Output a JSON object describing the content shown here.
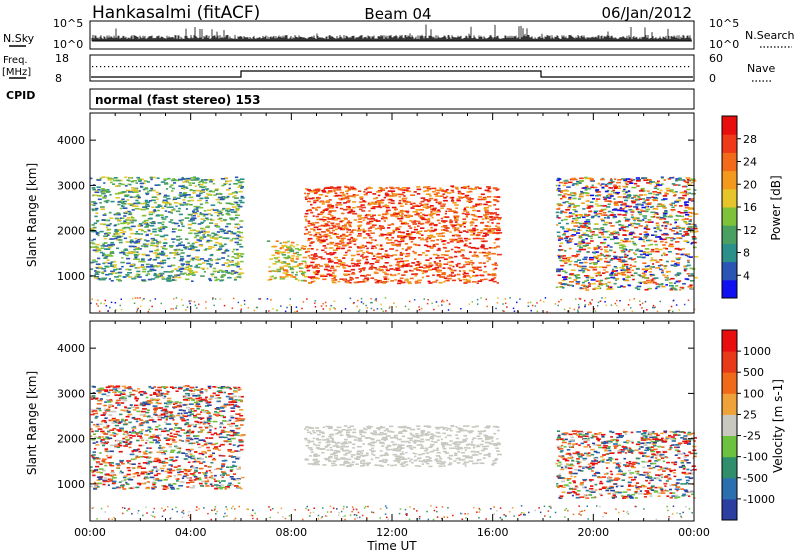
{
  "header": {
    "station": "Hankasalmi (fitACF)",
    "beam": "Beam 04",
    "date": "06/Jan/2012"
  },
  "strip_labels": {
    "nsky": "N.Sky",
    "nsky_top": "10^5",
    "nsky_bottom": "10^0",
    "nsearch": "N.Search",
    "nsearch_top": "10^5",
    "nsearch_bottom": "10^0",
    "freq": "Freq.",
    "freq_unit": "[MHz]",
    "freq_top": "18",
    "freq_bottom": "8",
    "nave": "Nave",
    "nave_top": "60",
    "nave_bottom": "0",
    "cpid": "CPID",
    "cpid_text": "normal (fast stereo) 153"
  },
  "chart_data": [
    {
      "type": "heatmap",
      "title": "",
      "xlabel": "",
      "ylabel": "Slant Range [km]",
      "xlim": [
        "00:00",
        "24:00"
      ],
      "ylim": [
        180,
        4600
      ],
      "yticks": [
        "1000",
        "2000",
        "3000",
        "4000"
      ],
      "colorbar": {
        "label": "Power [dB]",
        "ticks": [
          "4",
          "8",
          "12",
          "16",
          "20",
          "24",
          "28"
        ],
        "colors": [
          "#1010f0",
          "#2a55b5",
          "#2b8f8a",
          "#4aa060",
          "#7ec23a",
          "#e6c52a",
          "#f39a1d",
          "#f36a1a",
          "#ee3a18",
          "#e80e0e"
        ]
      },
      "regions": [
        {
          "label": "",
          "t": [
            0.0,
            6.0
          ],
          "range_km": [
            900,
            3200
          ],
          "level": "low-mid"
        },
        {
          "label": "",
          "t": [
            7.0,
            8.5
          ],
          "range_km": [
            900,
            1800
          ],
          "level": "mid"
        },
        {
          "label": "",
          "t": [
            8.5,
            16.2
          ],
          "range_km": [
            850,
            3000
          ],
          "level": "high"
        },
        {
          "label": "",
          "t": [
            18.5,
            24.0
          ],
          "range_km": [
            700,
            3200
          ],
          "level": "mixed"
        }
      ]
    },
    {
      "type": "heatmap",
      "title": "",
      "xlabel": "Time UT",
      "ylabel": "Slant Range [km]",
      "xlim": [
        "00:00",
        "24:00"
      ],
      "ylim": [
        180,
        4600
      ],
      "xticks": [
        "00:00",
        "04:00",
        "08:00",
        "12:00",
        "16:00",
        "20:00",
        "00:00"
      ],
      "yticks": [
        "1000",
        "2000",
        "3000",
        "4000"
      ],
      "colorbar": {
        "label": "Velocity [m s-1]",
        "ticks": [
          "1000",
          "500",
          "100",
          "25",
          "-25",
          "-100",
          "-500",
          "-1000"
        ],
        "colors": [
          "#2a3fa0",
          "#2b6fb0",
          "#2f8f6c",
          "#6cc13e",
          "#c8c8c0",
          "#f0a23a",
          "#f06a1a",
          "#e83a18",
          "#e80e0e"
        ]
      },
      "regions": [
        {
          "label": "",
          "t": [
            0.0,
            6.0
          ],
          "range_km": [
            900,
            3200
          ],
          "level": "mixed"
        },
        {
          "label": "",
          "t": [
            8.5,
            16.2
          ],
          "range_km": [
            1400,
            2300
          ],
          "level": "near-zero"
        },
        {
          "label": "",
          "t": [
            18.5,
            24.0
          ],
          "range_km": [
            700,
            2200
          ],
          "level": "mixed"
        }
      ]
    }
  ]
}
